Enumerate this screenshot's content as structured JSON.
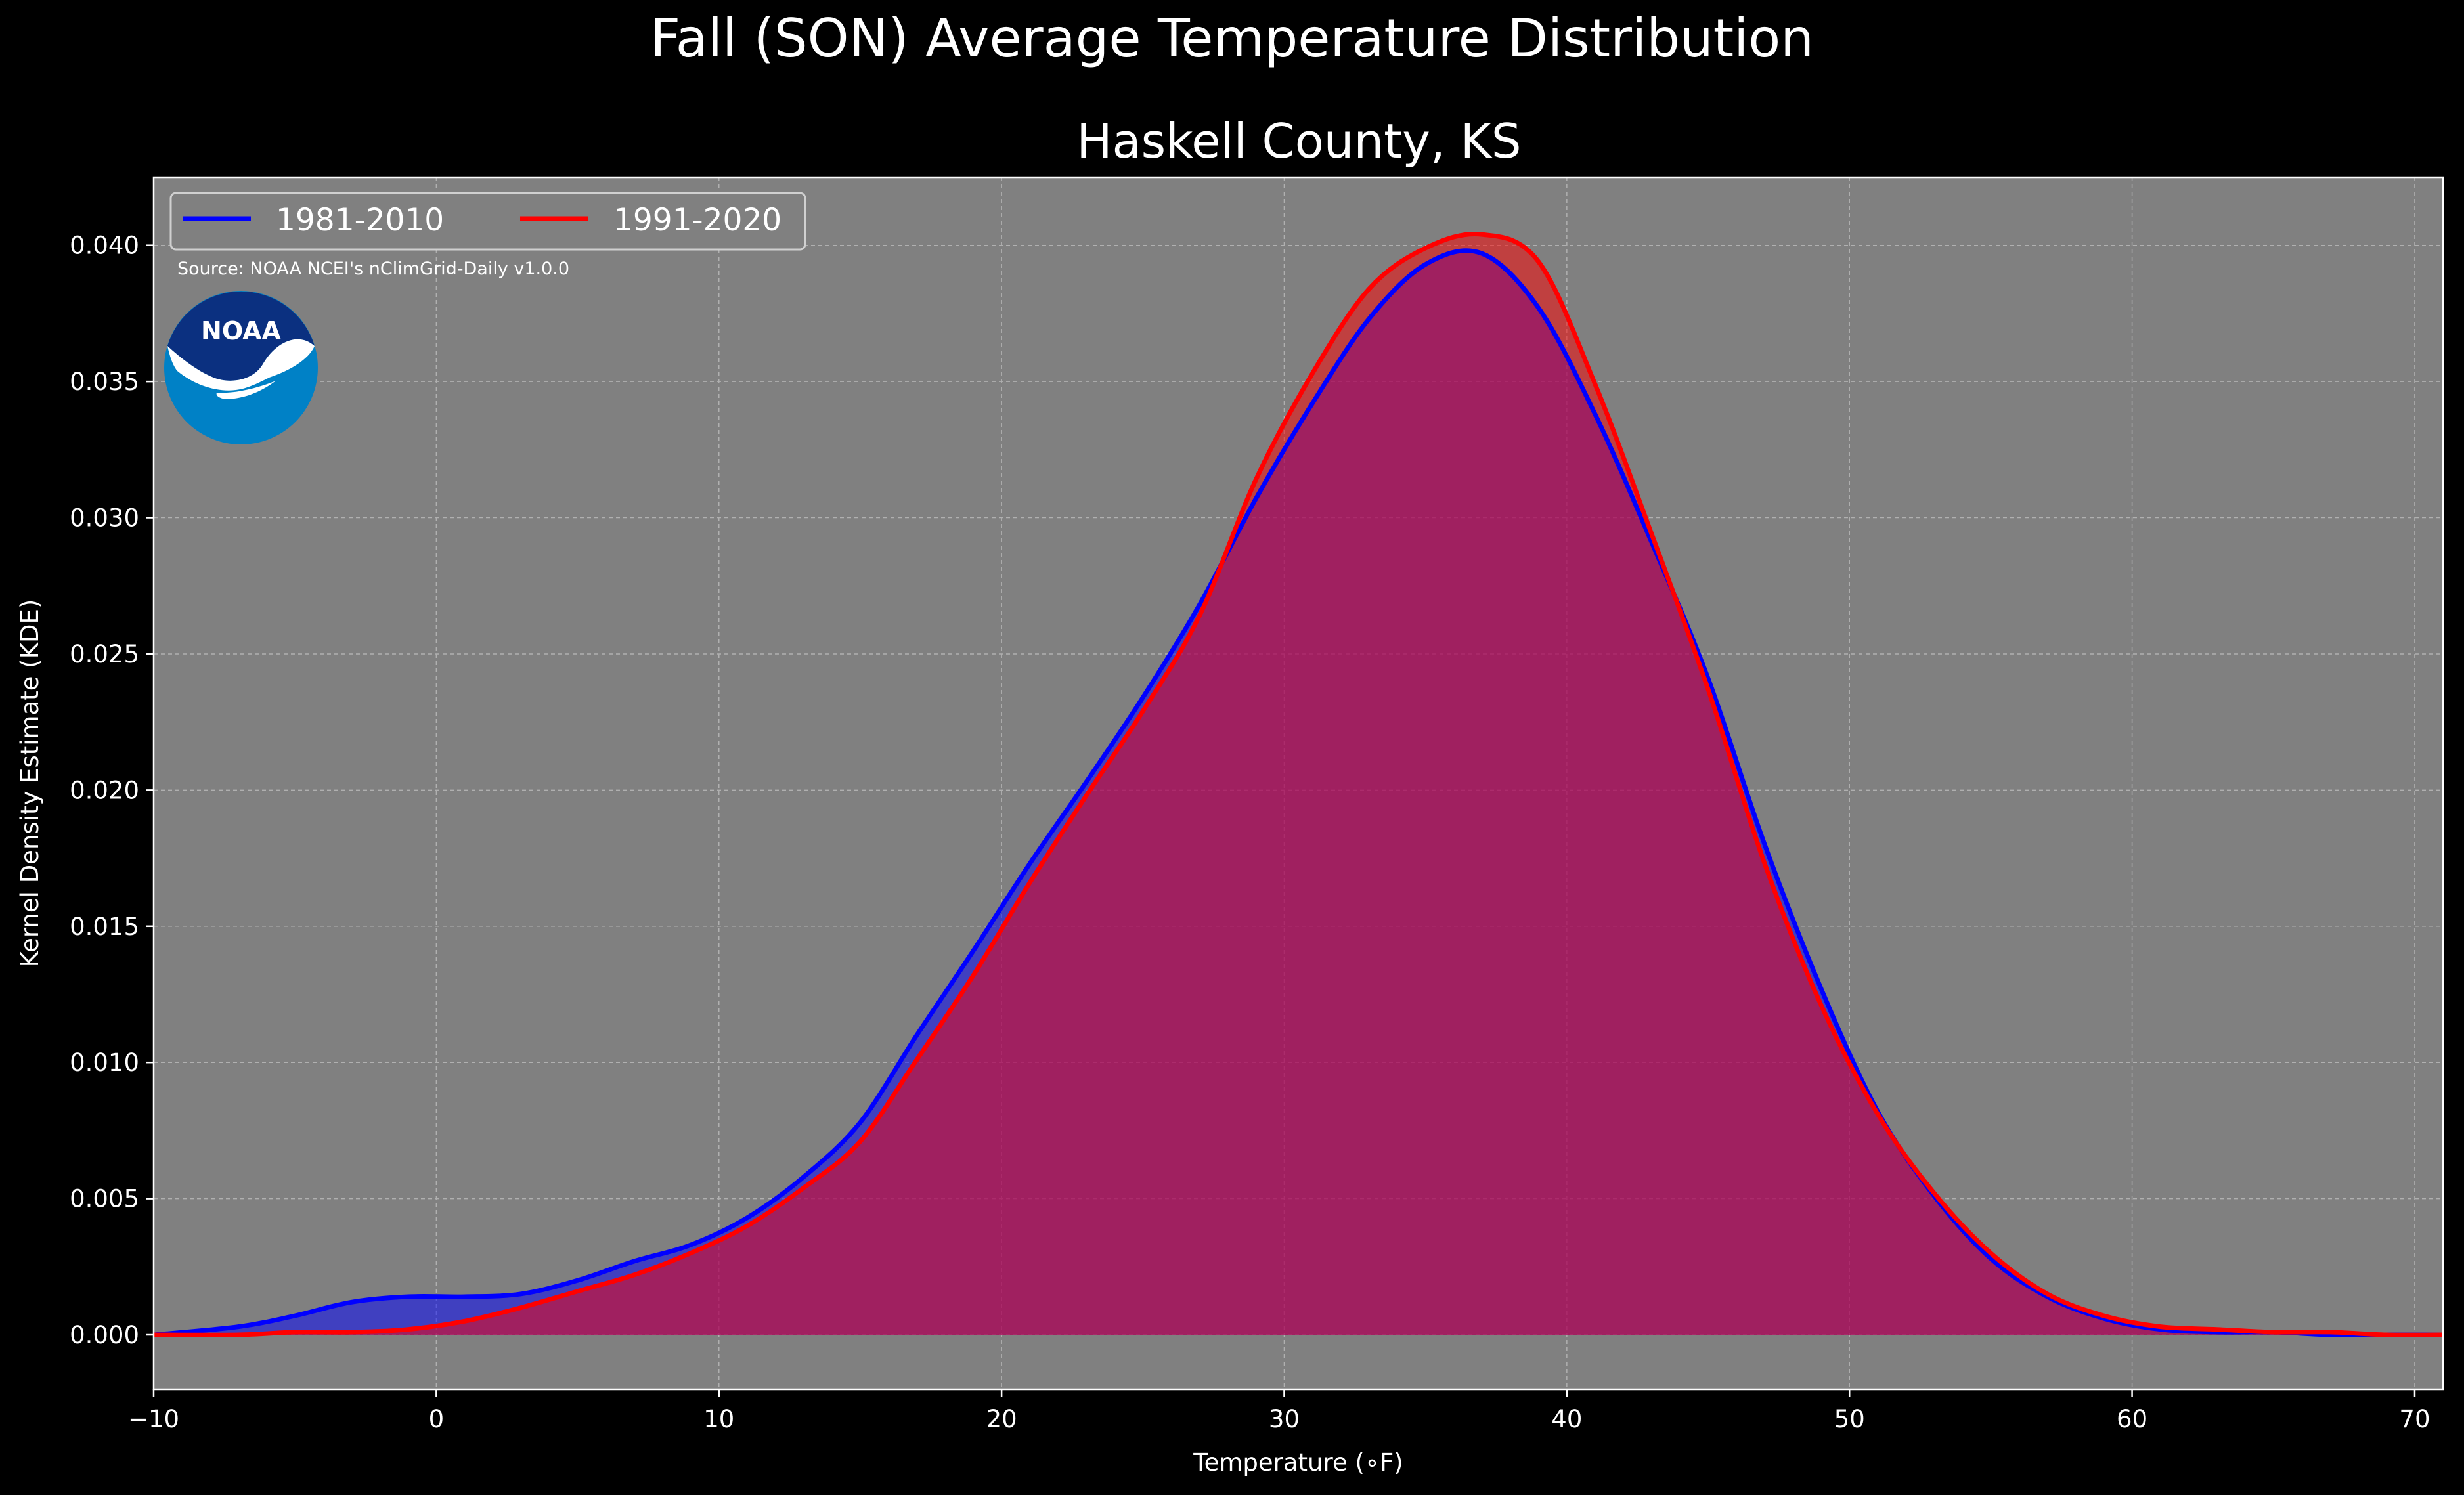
{
  "chart_data": {
    "type": "area",
    "suptitle": "Fall (SON) Average Temperature Distribution",
    "title": "Haskell County, KS",
    "xlabel": "Temperature (∘F)",
    "ylabel": "Kernel Density Estimate (KDE)",
    "source": "Source: NOAA NCEI's nClimGrid-Daily v1.0.0",
    "logo_text": "NOAA",
    "xlim": [
      -10,
      71
    ],
    "ylim": [
      -0.002,
      0.0425
    ],
    "xticks": [
      -10,
      0,
      10,
      20,
      30,
      40,
      50,
      60,
      70
    ],
    "xtick_labels": [
      "−10",
      "0",
      "10",
      "20",
      "30",
      "40",
      "50",
      "60",
      "70"
    ],
    "yticks": [
      0.0,
      0.005,
      0.01,
      0.015,
      0.02,
      0.025,
      0.03,
      0.035,
      0.04
    ],
    "ytick_labels": [
      "0.000",
      "0.005",
      "0.010",
      "0.015",
      "0.020",
      "0.025",
      "0.030",
      "0.035",
      "0.040"
    ],
    "grid": true,
    "legend_position": "top-left",
    "background": "#808080",
    "series": [
      {
        "name": "1981-2010",
        "color": "#0000ff",
        "x": [
          -10,
          -7,
          -5,
          -3,
          -1,
          1,
          3,
          5,
          7,
          9,
          11,
          13,
          15,
          17,
          19,
          21,
          23,
          25,
          27,
          29,
          31,
          33,
          35,
          37,
          39,
          41,
          43,
          45,
          47,
          49,
          51,
          53,
          55,
          57,
          59,
          61,
          63,
          65,
          67,
          69,
          71
        ],
        "values": [
          0.0,
          0.0003,
          0.0007,
          0.0012,
          0.0014,
          0.0014,
          0.0015,
          0.002,
          0.0027,
          0.0033,
          0.0043,
          0.0058,
          0.0078,
          0.011,
          0.0141,
          0.0173,
          0.0203,
          0.0234,
          0.0268,
          0.0307,
          0.0342,
          0.0373,
          0.0393,
          0.0397,
          0.0377,
          0.0338,
          0.0291,
          0.0241,
          0.018,
          0.0127,
          0.0082,
          0.0051,
          0.0028,
          0.0014,
          0.0006,
          0.0002,
          0.0001,
          0.0001,
          0.0,
          0.0,
          0.0
        ]
      },
      {
        "name": "1991-2020",
        "color": "#ff0000",
        "x": [
          -10,
          -7,
          -5,
          -3,
          -1,
          1,
          3,
          5,
          7,
          9,
          11,
          13,
          15,
          17,
          19,
          21,
          23,
          25,
          27,
          29,
          31,
          33,
          35,
          37,
          39,
          41,
          43,
          45,
          47,
          49,
          51,
          53,
          55,
          57,
          59,
          61,
          63,
          65,
          67,
          69,
          71
        ],
        "values": [
          0.0,
          0.0,
          0.0001,
          0.0001,
          0.0002,
          0.0005,
          0.001,
          0.0016,
          0.0022,
          0.003,
          0.004,
          0.0054,
          0.0071,
          0.0101,
          0.0132,
          0.0166,
          0.0198,
          0.0229,
          0.0264,
          0.0314,
          0.0353,
          0.0384,
          0.0399,
          0.0404,
          0.0394,
          0.0349,
          0.0294,
          0.0237,
          0.0173,
          0.0121,
          0.0081,
          0.0052,
          0.003,
          0.0015,
          0.0007,
          0.0003,
          0.0002,
          0.0001,
          0.0001,
          0.0,
          0.0
        ]
      }
    ]
  }
}
